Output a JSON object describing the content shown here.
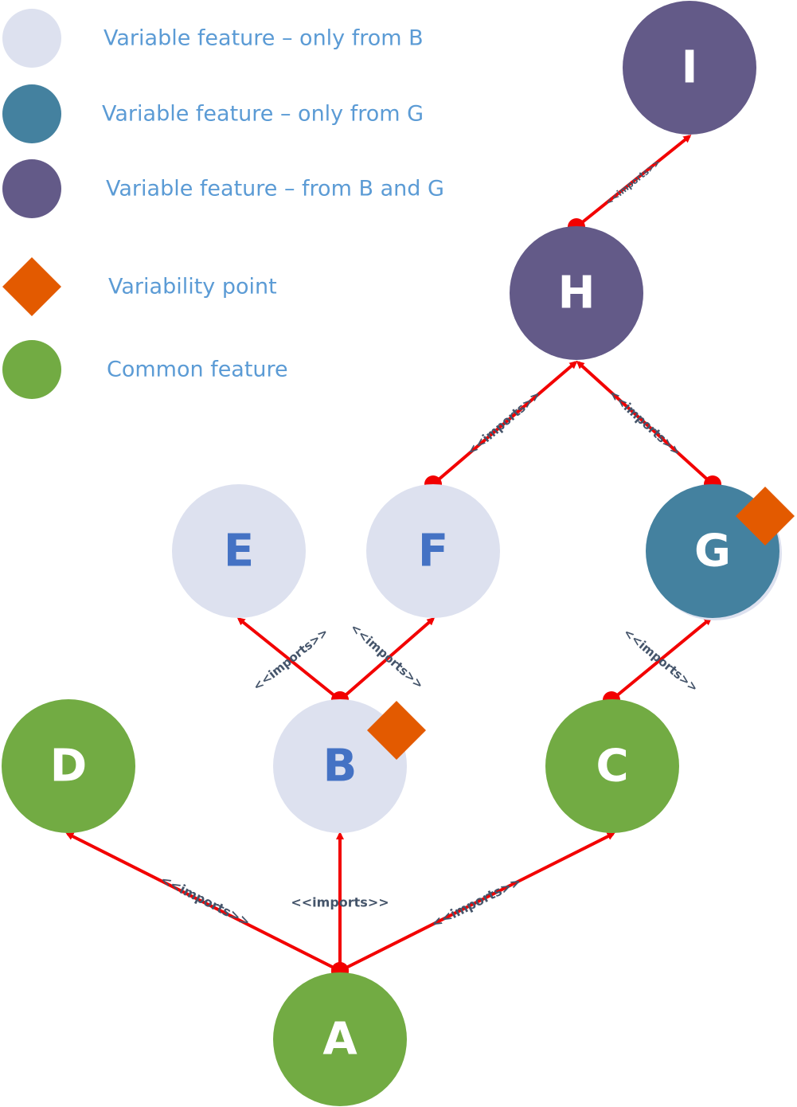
{
  "legend": [
    {
      "kind": "circle",
      "color": "#dde1ef",
      "label": "Variable feature – only from B"
    },
    {
      "kind": "circle",
      "color": "#44819f",
      "label": "Variable feature – only from G"
    },
    {
      "kind": "circle",
      "color": "#635a88",
      "label": "Variable feature – from B and G"
    },
    {
      "kind": "diamond",
      "color": "#e35a00",
      "label": "Variability point"
    },
    {
      "kind": "circle",
      "color": "#72ab43",
      "label": "Common feature"
    }
  ],
  "colors": {
    "variable_b": "#dde1ef",
    "variable_g": "#44819f",
    "variable_bg": "#635a88",
    "common": "#72ab43",
    "variability_point": "#e35a00",
    "edge": "#f20000",
    "label_light_text": "#4472c4",
    "label_dark_text": "#ffffff"
  },
  "nodes": [
    {
      "id": "A",
      "label": "A",
      "type": "common"
    },
    {
      "id": "B",
      "label": "B",
      "type": "variable_b",
      "variability_point": true
    },
    {
      "id": "C",
      "label": "C",
      "type": "common"
    },
    {
      "id": "D",
      "label": "D",
      "type": "common"
    },
    {
      "id": "E",
      "label": "E",
      "type": "variable_b"
    },
    {
      "id": "F",
      "label": "F",
      "type": "variable_b"
    },
    {
      "id": "G",
      "label": "G",
      "type": "variable_g",
      "variability_point": true
    },
    {
      "id": "H",
      "label": "H",
      "type": "variable_bg"
    },
    {
      "id": "I",
      "label": "I",
      "type": "variable_bg"
    }
  ],
  "edges": [
    {
      "from": "A",
      "to": "D",
      "label": "<<imports>>"
    },
    {
      "from": "A",
      "to": "B",
      "label": "<<imports>>"
    },
    {
      "from": "A",
      "to": "C",
      "label": "<<imports>>"
    },
    {
      "from": "B",
      "to": "E",
      "label": "<<imports>>"
    },
    {
      "from": "B",
      "to": "F",
      "label": "<<imports>>"
    },
    {
      "from": "C",
      "to": "G",
      "label": "<<imports>>"
    },
    {
      "from": "F",
      "to": "H",
      "label": "<<imports>>"
    },
    {
      "from": "G",
      "to": "H",
      "label": "<<imports>>"
    },
    {
      "from": "H",
      "to": "I",
      "label": "<<imports>>"
    }
  ]
}
